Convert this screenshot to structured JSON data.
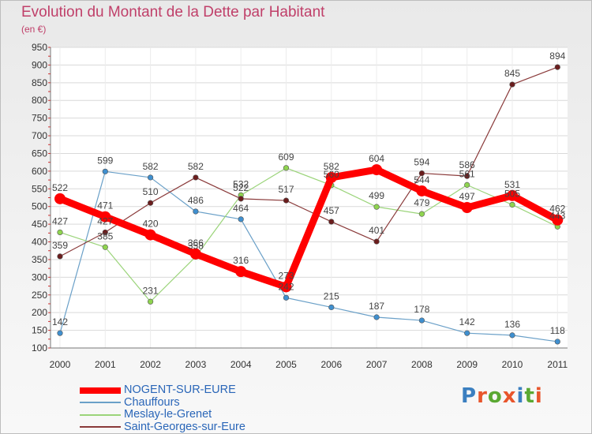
{
  "title": "Evolution du Montant de la Dette par Habitant",
  "subtitle": "(en €)",
  "brand": {
    "text": "Proxiti",
    "letter_colors": [
      "#3b7fc0",
      "#e8552c",
      "#5aa832",
      "#e8552c",
      "#3b7fc0",
      "#5aa832",
      "#e8552c"
    ]
  },
  "chart_data": {
    "type": "line",
    "title": "Evolution du Montant de la Dette par Habitant",
    "subtitle": "(en €)",
    "xlabel": "",
    "ylabel": "",
    "x": [
      "2000",
      "2001",
      "2002",
      "2003",
      "2004",
      "2005",
      "2006",
      "2007",
      "2008",
      "2009",
      "2010",
      "2011"
    ],
    "ylim": [
      100,
      950
    ],
    "yticks": [
      100,
      150,
      200,
      250,
      300,
      350,
      400,
      450,
      500,
      550,
      600,
      650,
      700,
      750,
      800,
      850,
      900,
      950
    ],
    "grid": true,
    "legend_position": "bottom-left",
    "series": [
      {
        "name": "NOGENT-SUR-EURE",
        "color": "#ff0000",
        "marker": "#ff0000",
        "thick": true,
        "values": [
          522,
          471,
          420,
          366,
          316,
          273,
          582,
          604,
          544,
          497,
          531,
          462
        ]
      },
      {
        "name": "Chauffours",
        "color": "#6aa0c8",
        "marker": "#3f8fcf",
        "thick": false,
        "values": [
          142,
          599,
          582,
          486,
          464,
          242,
          215,
          187,
          178,
          142,
          136,
          118
        ]
      },
      {
        "name": "Meslay-le-Grenet",
        "color": "#9bd47a",
        "marker": "#8fd44f",
        "thick": false,
        "values": [
          427,
          385,
          231,
          358,
          532,
          609,
          560,
          499,
          479,
          561,
          505,
          443
        ]
      },
      {
        "name": "Saint-Georges-sur-Eure",
        "color": "#8a3a3a",
        "marker": "#6b1d1d",
        "thick": false,
        "values": [
          359,
          427,
          510,
          582,
          522,
          517,
          457,
          401,
          594,
          586,
          845,
          894
        ]
      }
    ]
  }
}
